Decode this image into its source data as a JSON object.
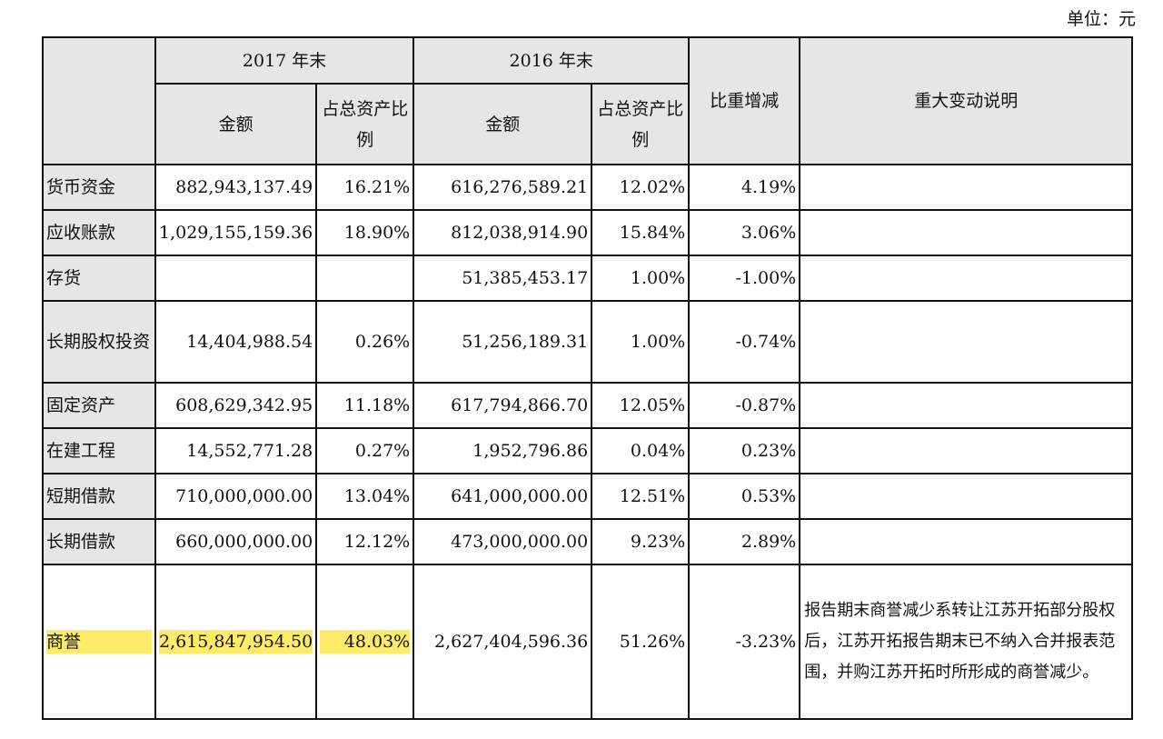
{
  "unit_label": "单位：元",
  "headers": {
    "y2017": "2017 年末",
    "y2016": "2016 年末",
    "amount": "金额",
    "ratio": "占总资产比例",
    "change": "比重增减",
    "note": "重大变动说明"
  },
  "rows": [
    {
      "item": "货币资金",
      "a2017": "882,943,137.49",
      "r2017": "16.21%",
      "a2016": "616,276,589.21",
      "r2016": "12.02%",
      "change": "4.19%",
      "note": ""
    },
    {
      "item": "应收账款",
      "a2017": "1,029,155,159.36",
      "r2017": "18.90%",
      "a2016": "812,038,914.90",
      "r2016": "15.84%",
      "change": "3.06%",
      "note": ""
    },
    {
      "item": "存货",
      "a2017": "",
      "r2017": "",
      "a2016": "51,385,453.17",
      "r2016": "1.00%",
      "change": "-1.00%",
      "note": ""
    },
    {
      "item": "长期股权投资",
      "a2017": "14,404,988.54",
      "r2017": "0.26%",
      "a2016": "51,256,189.31",
      "r2016": "1.00%",
      "change": "-0.74%",
      "note": ""
    },
    {
      "item": "固定资产",
      "a2017": "608,629,342.95",
      "r2017": "11.18%",
      "a2016": "617,794,866.70",
      "r2016": "12.05%",
      "change": "-0.87%",
      "note": ""
    },
    {
      "item": "在建工程",
      "a2017": "14,552,771.28",
      "r2017": "0.27%",
      "a2016": "1,952,796.86",
      "r2016": "0.04%",
      "change": "0.23%",
      "note": ""
    },
    {
      "item": "短期借款",
      "a2017": "710,000,000.00",
      "r2017": "13.04%",
      "a2016": "641,000,000.00",
      "r2016": "12.51%",
      "change": "0.53%",
      "note": ""
    },
    {
      "item": "长期借款",
      "a2017": "660,000,000.00",
      "r2017": "12.12%",
      "a2016": "473,000,000.00",
      "r2016": "9.23%",
      "change": "2.89%",
      "note": ""
    },
    {
      "item": "商誉",
      "a2017": "2,615,847,954.50",
      "r2017": "48.03%",
      "a2016": "2,627,404,596.36",
      "r2016": "51.26%",
      "change": "-3.23%",
      "note": "报告期末商誉减少系转让江苏开拓部分股权后，江苏开拓报告期末已不纳入合并报表范围，并购江苏开拓时所形成的商誉减少。"
    }
  ],
  "highlight_color": "#ffeb6a"
}
